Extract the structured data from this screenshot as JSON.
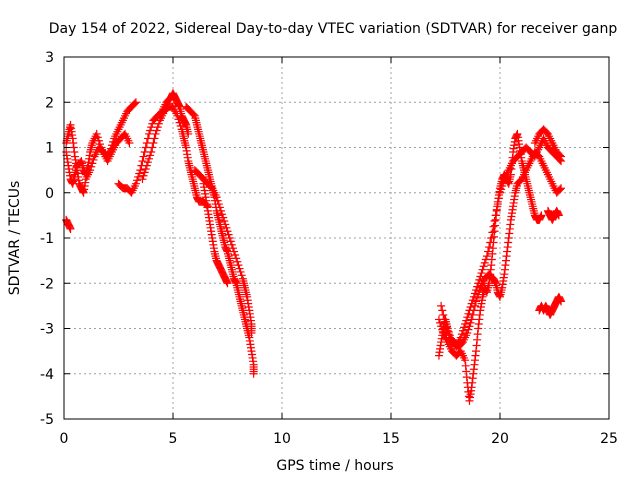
{
  "chart_data": {
    "type": "scatter",
    "title": "Day 154 of 2022, Sidereal Day-to-day VTEC variation (SDTVAR) for receiver ganp",
    "xlabel": "GPS time / hours",
    "ylabel": "SDTVAR / TECUs",
    "xlim": [
      0,
      25
    ],
    "ylim": [
      -5,
      3
    ],
    "xticks": [
      "0",
      "5",
      "10",
      "15",
      "20",
      "25"
    ],
    "yticks": [
      "-5",
      "-4",
      "-3",
      "-2",
      "-1",
      "0",
      "1",
      "2",
      "3"
    ],
    "grid": true,
    "marker": "plus",
    "color": "#ff0000",
    "series": [
      {
        "name": "segment-1",
        "points": [
          [
            0.1,
            0.9
          ],
          [
            0.2,
            0.6
          ],
          [
            0.3,
            0.3
          ],
          [
            0.4,
            0.2
          ],
          [
            0.5,
            0.4
          ],
          [
            0.6,
            0.6
          ],
          [
            0.8,
            0.7
          ],
          [
            0.9,
            0.5
          ],
          [
            1.0,
            0.4
          ],
          [
            1.1,
            0.6
          ],
          [
            1.2,
            0.9
          ],
          [
            1.3,
            1.1
          ],
          [
            1.5,
            1.3
          ],
          [
            1.7,
            1.0
          ],
          [
            1.9,
            0.8
          ],
          [
            2.1,
            0.9
          ],
          [
            2.3,
            1.2
          ],
          [
            2.5,
            1.4
          ],
          [
            2.7,
            1.6
          ],
          [
            2.9,
            1.8
          ],
          [
            3.1,
            1.9
          ],
          [
            3.3,
            2.0
          ]
        ]
      },
      {
        "name": "segment-2",
        "points": [
          [
            0.1,
            1.1
          ],
          [
            0.2,
            1.3
          ],
          [
            0.3,
            1.5
          ],
          [
            0.4,
            1.2
          ],
          [
            0.5,
            0.8
          ],
          [
            0.6,
            0.5
          ],
          [
            0.7,
            0.2
          ],
          [
            0.8,
            0.1
          ],
          [
            0.9,
            0.0
          ],
          [
            1.0,
            0.3
          ],
          [
            1.2,
            0.5
          ],
          [
            1.4,
            0.8
          ],
          [
            1.6,
            1.0
          ],
          [
            1.8,
            0.9
          ],
          [
            2.0,
            0.7
          ],
          [
            2.2,
            0.9
          ],
          [
            2.4,
            1.1
          ],
          [
            2.6,
            1.2
          ],
          [
            2.8,
            1.3
          ],
          [
            3.0,
            1.1
          ]
        ]
      },
      {
        "name": "segment-3",
        "points": [
          [
            0.1,
            -0.6
          ],
          [
            0.2,
            -0.7
          ],
          [
            0.3,
            -0.8
          ]
        ]
      },
      {
        "name": "segment-4",
        "points": [
          [
            2.5,
            0.2
          ],
          [
            2.7,
            0.1
          ],
          [
            2.9,
            0.1
          ],
          [
            3.1,
            0.0
          ],
          [
            3.3,
            0.2
          ],
          [
            3.5,
            0.5
          ],
          [
            3.7,
            0.9
          ],
          [
            3.9,
            1.3
          ],
          [
            4.1,
            1.6
          ],
          [
            4.3,
            1.7
          ],
          [
            4.5,
            1.8
          ],
          [
            4.7,
            2.0
          ],
          [
            4.9,
            2.1
          ],
          [
            5.0,
            2.2
          ],
          [
            5.1,
            2.1
          ],
          [
            5.2,
            2.0
          ],
          [
            5.3,
            1.9
          ],
          [
            5.4,
            1.7
          ],
          [
            5.5,
            1.6
          ],
          [
            5.6,
            1.5
          ],
          [
            5.7,
            1.3
          ]
        ]
      },
      {
        "name": "segment-5",
        "points": [
          [
            3.6,
            0.3
          ],
          [
            3.8,
            0.6
          ],
          [
            4.0,
            0.9
          ],
          [
            4.2,
            1.3
          ],
          [
            4.4,
            1.6
          ],
          [
            4.6,
            1.8
          ],
          [
            4.8,
            1.9
          ],
          [
            5.0,
            1.9
          ],
          [
            5.2,
            1.7
          ],
          [
            5.4,
            1.4
          ],
          [
            5.5,
            1.2
          ],
          [
            5.6,
            1.0
          ],
          [
            5.7,
            0.7
          ],
          [
            5.8,
            0.5
          ],
          [
            5.9,
            0.3
          ],
          [
            6.0,
            0.1
          ],
          [
            6.1,
            -0.1
          ],
          [
            6.2,
            -0.2
          ],
          [
            6.4,
            -0.2
          ],
          [
            6.6,
            -0.3
          ]
        ]
      },
      {
        "name": "segment-6",
        "points": [
          [
            5.6,
            1.9
          ],
          [
            5.8,
            1.8
          ],
          [
            6.0,
            1.7
          ],
          [
            6.1,
            1.5
          ],
          [
            6.2,
            1.3
          ],
          [
            6.3,
            1.1
          ],
          [
            6.4,
            0.9
          ],
          [
            6.5,
            0.7
          ],
          [
            6.6,
            0.5
          ],
          [
            6.7,
            0.3
          ],
          [
            6.8,
            0.1
          ],
          [
            6.9,
            -0.1
          ],
          [
            7.0,
            -0.4
          ],
          [
            7.1,
            -0.6
          ],
          [
            7.2,
            -0.8
          ],
          [
            7.3,
            -1.0
          ],
          [
            7.4,
            -1.2
          ],
          [
            7.5,
            -1.3
          ],
          [
            7.6,
            -1.5
          ],
          [
            7.7,
            -1.7
          ],
          [
            7.8,
            -1.9
          ],
          [
            7.9,
            -2.0
          ],
          [
            8.0,
            -2.2
          ],
          [
            8.1,
            -2.4
          ],
          [
            8.2,
            -2.6
          ],
          [
            8.3,
            -2.8
          ],
          [
            8.4,
            -3.0
          ],
          [
            8.5,
            -3.2
          ],
          [
            8.6,
            -3.5
          ],
          [
            8.7,
            -3.8
          ],
          [
            8.7,
            -4.0
          ]
        ]
      },
      {
        "name": "segment-7",
        "points": [
          [
            6.4,
            0.2
          ],
          [
            6.5,
            -0.1
          ],
          [
            6.6,
            -0.4
          ],
          [
            6.7,
            -0.7
          ],
          [
            6.8,
            -1.0
          ],
          [
            6.9,
            -1.3
          ],
          [
            7.0,
            -1.5
          ],
          [
            7.1,
            -1.6
          ],
          [
            7.2,
            -1.7
          ],
          [
            7.3,
            -1.8
          ],
          [
            7.4,
            -1.9
          ],
          [
            7.5,
            -2.0
          ]
        ]
      },
      {
        "name": "segment-8",
        "points": [
          [
            6.0,
            0.5
          ],
          [
            6.2,
            0.4
          ],
          [
            6.4,
            0.3
          ],
          [
            6.6,
            0.2
          ],
          [
            6.8,
            0.1
          ],
          [
            7.0,
            -0.1
          ],
          [
            7.2,
            -0.4
          ],
          [
            7.4,
            -0.7
          ],
          [
            7.6,
            -1.0
          ],
          [
            7.8,
            -1.3
          ],
          [
            8.0,
            -1.6
          ],
          [
            8.2,
            -1.9
          ],
          [
            8.3,
            -2.1
          ],
          [
            8.4,
            -2.3
          ],
          [
            8.5,
            -2.6
          ],
          [
            8.6,
            -2.9
          ],
          [
            8.6,
            -3.1
          ]
        ]
      },
      {
        "name": "segment-9",
        "points": [
          [
            17.2,
            -3.6
          ],
          [
            17.3,
            -3.3
          ],
          [
            17.4,
            -3.0
          ],
          [
            17.5,
            -2.8
          ],
          [
            17.6,
            -3.0
          ],
          [
            17.8,
            -3.3
          ],
          [
            18.0,
            -3.4
          ],
          [
            18.2,
            -3.2
          ],
          [
            18.4,
            -2.9
          ],
          [
            18.6,
            -2.6
          ],
          [
            18.8,
            -2.3
          ],
          [
            19.0,
            -2.0
          ],
          [
            19.2,
            -1.7
          ],
          [
            19.4,
            -1.4
          ],
          [
            19.6,
            -1.0
          ],
          [
            19.8,
            -0.5
          ],
          [
            20.0,
            0.0
          ],
          [
            20.2,
            0.3
          ],
          [
            20.4,
            0.5
          ],
          [
            20.6,
            0.7
          ],
          [
            20.8,
            0.8
          ],
          [
            21.0,
            0.9
          ],
          [
            21.2,
            1.0
          ],
          [
            21.4,
            0.9
          ],
          [
            21.6,
            0.8
          ],
          [
            21.8,
            1.0
          ],
          [
            22.0,
            1.2
          ],
          [
            22.2,
            1.0
          ],
          [
            22.4,
            0.9
          ],
          [
            22.6,
            0.8
          ],
          [
            22.8,
            0.7
          ]
        ]
      },
      {
        "name": "segment-10",
        "points": [
          [
            17.2,
            -2.8
          ],
          [
            17.4,
            -3.1
          ],
          [
            17.6,
            -3.3
          ],
          [
            17.8,
            -3.5
          ],
          [
            18.0,
            -3.6
          ],
          [
            18.2,
            -3.5
          ],
          [
            18.4,
            -3.7
          ],
          [
            18.5,
            -4.2
          ],
          [
            18.6,
            -4.6
          ],
          [
            18.7,
            -4.3
          ],
          [
            18.8,
            -3.9
          ],
          [
            18.9,
            -3.5
          ],
          [
            19.0,
            -3.0
          ],
          [
            19.1,
            -2.6
          ],
          [
            19.2,
            -2.3
          ],
          [
            19.3,
            -2.1
          ],
          [
            19.4,
            -2.2
          ],
          [
            19.5,
            -2.0
          ],
          [
            19.6,
            -1.6
          ],
          [
            19.7,
            -1.1
          ],
          [
            19.8,
            -0.6
          ],
          [
            19.9,
            -0.2
          ],
          [
            20.0,
            0.1
          ],
          [
            20.1,
            0.3
          ],
          [
            20.2,
            0.4
          ],
          [
            20.3,
            0.3
          ],
          [
            20.4,
            0.2
          ],
          [
            20.5,
            0.4
          ],
          [
            20.6,
            0.9
          ],
          [
            20.7,
            1.2
          ],
          [
            20.8,
            1.3
          ],
          [
            20.9,
            1.0
          ],
          [
            21.0,
            0.7
          ],
          [
            21.1,
            0.5
          ],
          [
            21.2,
            0.3
          ],
          [
            21.3,
            0.1
          ],
          [
            21.4,
            -0.1
          ],
          [
            21.5,
            -0.3
          ],
          [
            21.6,
            -0.5
          ],
          [
            21.7,
            -0.6
          ],
          [
            21.8,
            -0.6
          ],
          [
            21.9,
            -0.5
          ]
        ]
      },
      {
        "name": "segment-11",
        "points": [
          [
            17.3,
            -2.5
          ],
          [
            17.5,
            -2.9
          ],
          [
            17.7,
            -3.2
          ],
          [
            17.9,
            -3.3
          ],
          [
            18.1,
            -3.4
          ],
          [
            18.3,
            -3.3
          ],
          [
            18.5,
            -3.1
          ],
          [
            18.7,
            -2.8
          ],
          [
            18.9,
            -2.4
          ],
          [
            19.1,
            -2.1
          ],
          [
            19.3,
            -1.9
          ],
          [
            19.5,
            -1.8
          ],
          [
            19.7,
            -1.9
          ],
          [
            19.8,
            -2.0
          ],
          [
            19.9,
            -2.2
          ],
          [
            20.0,
            -2.3
          ],
          [
            20.1,
            -2.1
          ],
          [
            20.2,
            -1.8
          ],
          [
            20.3,
            -1.4
          ],
          [
            20.4,
            -1.0
          ],
          [
            20.5,
            -0.6
          ],
          [
            20.6,
            -0.3
          ],
          [
            20.7,
            0.0
          ],
          [
            20.8,
            0.2
          ],
          [
            21.0,
            0.3
          ],
          [
            21.2,
            0.5
          ],
          [
            21.4,
            0.7
          ],
          [
            21.6,
            0.9
          ],
          [
            21.8,
            0.8
          ],
          [
            22.0,
            0.6
          ],
          [
            22.2,
            0.4
          ],
          [
            22.4,
            0.2
          ],
          [
            22.6,
            0.0
          ],
          [
            22.8,
            0.1
          ]
        ]
      },
      {
        "name": "segment-12",
        "points": [
          [
            21.8,
            -2.6
          ],
          [
            21.9,
            -2.5
          ],
          [
            22.0,
            -2.6
          ],
          [
            22.1,
            -2.5
          ],
          [
            22.2,
            -2.6
          ],
          [
            22.3,
            -2.7
          ],
          [
            22.4,
            -2.6
          ],
          [
            22.5,
            -2.5
          ],
          [
            22.6,
            -2.4
          ],
          [
            22.7,
            -2.3
          ],
          [
            22.8,
            -2.4
          ]
        ]
      },
      {
        "name": "segment-13",
        "points": [
          [
            22.2,
            -0.4
          ],
          [
            22.3,
            -0.5
          ],
          [
            22.4,
            -0.6
          ],
          [
            22.5,
            -0.5
          ],
          [
            22.6,
            -0.4
          ],
          [
            22.7,
            -0.5
          ]
        ]
      },
      {
        "name": "segment-14",
        "points": [
          [
            21.6,
            1.1
          ],
          [
            21.8,
            1.3
          ],
          [
            22.0,
            1.4
          ],
          [
            22.2,
            1.3
          ],
          [
            22.4,
            1.1
          ],
          [
            22.6,
            0.9
          ],
          [
            22.8,
            0.8
          ]
        ]
      }
    ]
  }
}
